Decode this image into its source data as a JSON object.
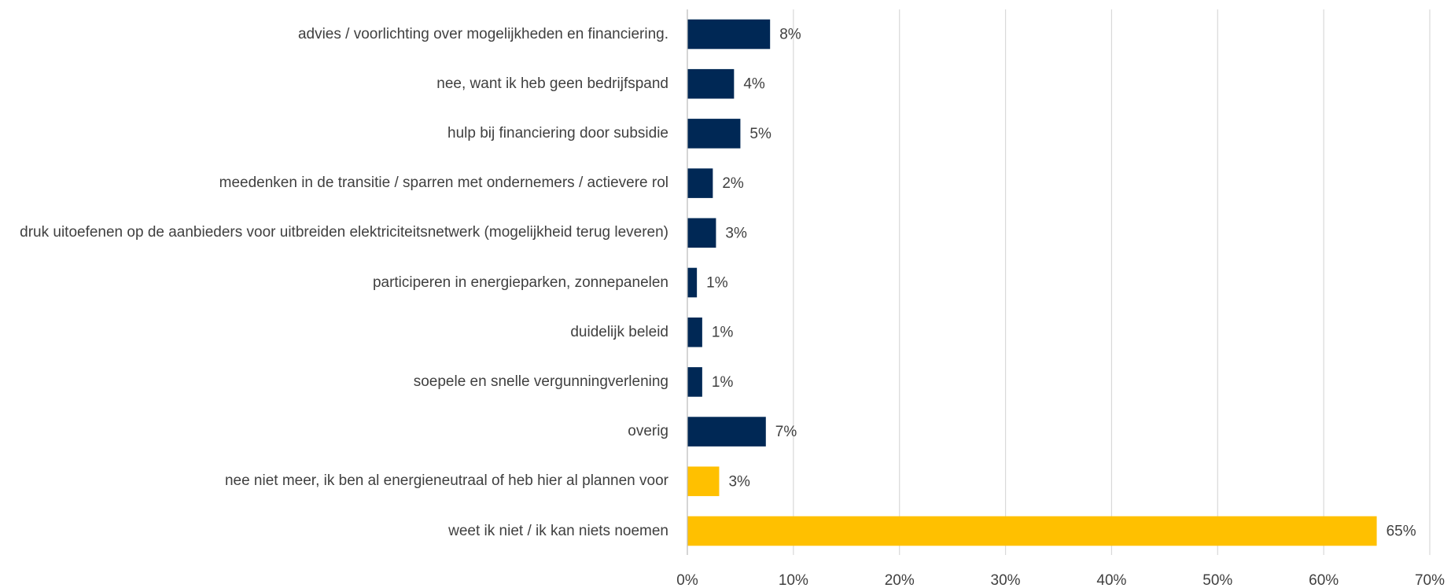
{
  "chart_data": {
    "type": "bar",
    "orientation": "horizontal",
    "categories": [
      "advies / voorlichting over mogelijkheden en financiering.",
      "nee, want ik heb geen bedrijfspand",
      "hulp bij financiering door subsidie",
      "meedenken in de transitie / sparren met ondernemers / actievere rol",
      "druk uitoefenen op de aanbieders voor uitbreiden elektriciteitsnetwerk (mogelijkheid terug leveren)",
      "participeren in energieparken, zonnepanelen",
      "duidelijk beleid",
      "soepele en snelle vergunningverlening",
      "overig",
      "nee niet meer, ik ben al energieneutraal of heb hier al plannen voor",
      "weet ik niet / ik kan niets noemen"
    ],
    "values": [
      7.8,
      4.4,
      5.0,
      2.4,
      2.7,
      0.9,
      1.4,
      1.4,
      7.4,
      3.0,
      65.0
    ],
    "value_labels": [
      "8%",
      "4%",
      "5%",
      "2%",
      "3%",
      "1%",
      "1%",
      "1%",
      "7%",
      "3%",
      "65%"
    ],
    "colors": [
      "#002855",
      "#002855",
      "#002855",
      "#002855",
      "#002855",
      "#002855",
      "#002855",
      "#002855",
      "#002855",
      "#ffc000",
      "#ffc000"
    ],
    "xlim": [
      0,
      70
    ],
    "xticks": [
      {
        "value": 0,
        "label": "0%"
      },
      {
        "value": 10,
        "label": "10%"
      },
      {
        "value": 20,
        "label": "20%"
      },
      {
        "value": 30,
        "label": "30%"
      },
      {
        "value": 40,
        "label": "40%"
      },
      {
        "value": 50,
        "label": "50%"
      },
      {
        "value": 60,
        "label": "60%"
      },
      {
        "value": 70,
        "label": "70%"
      }
    ],
    "grid": true
  }
}
